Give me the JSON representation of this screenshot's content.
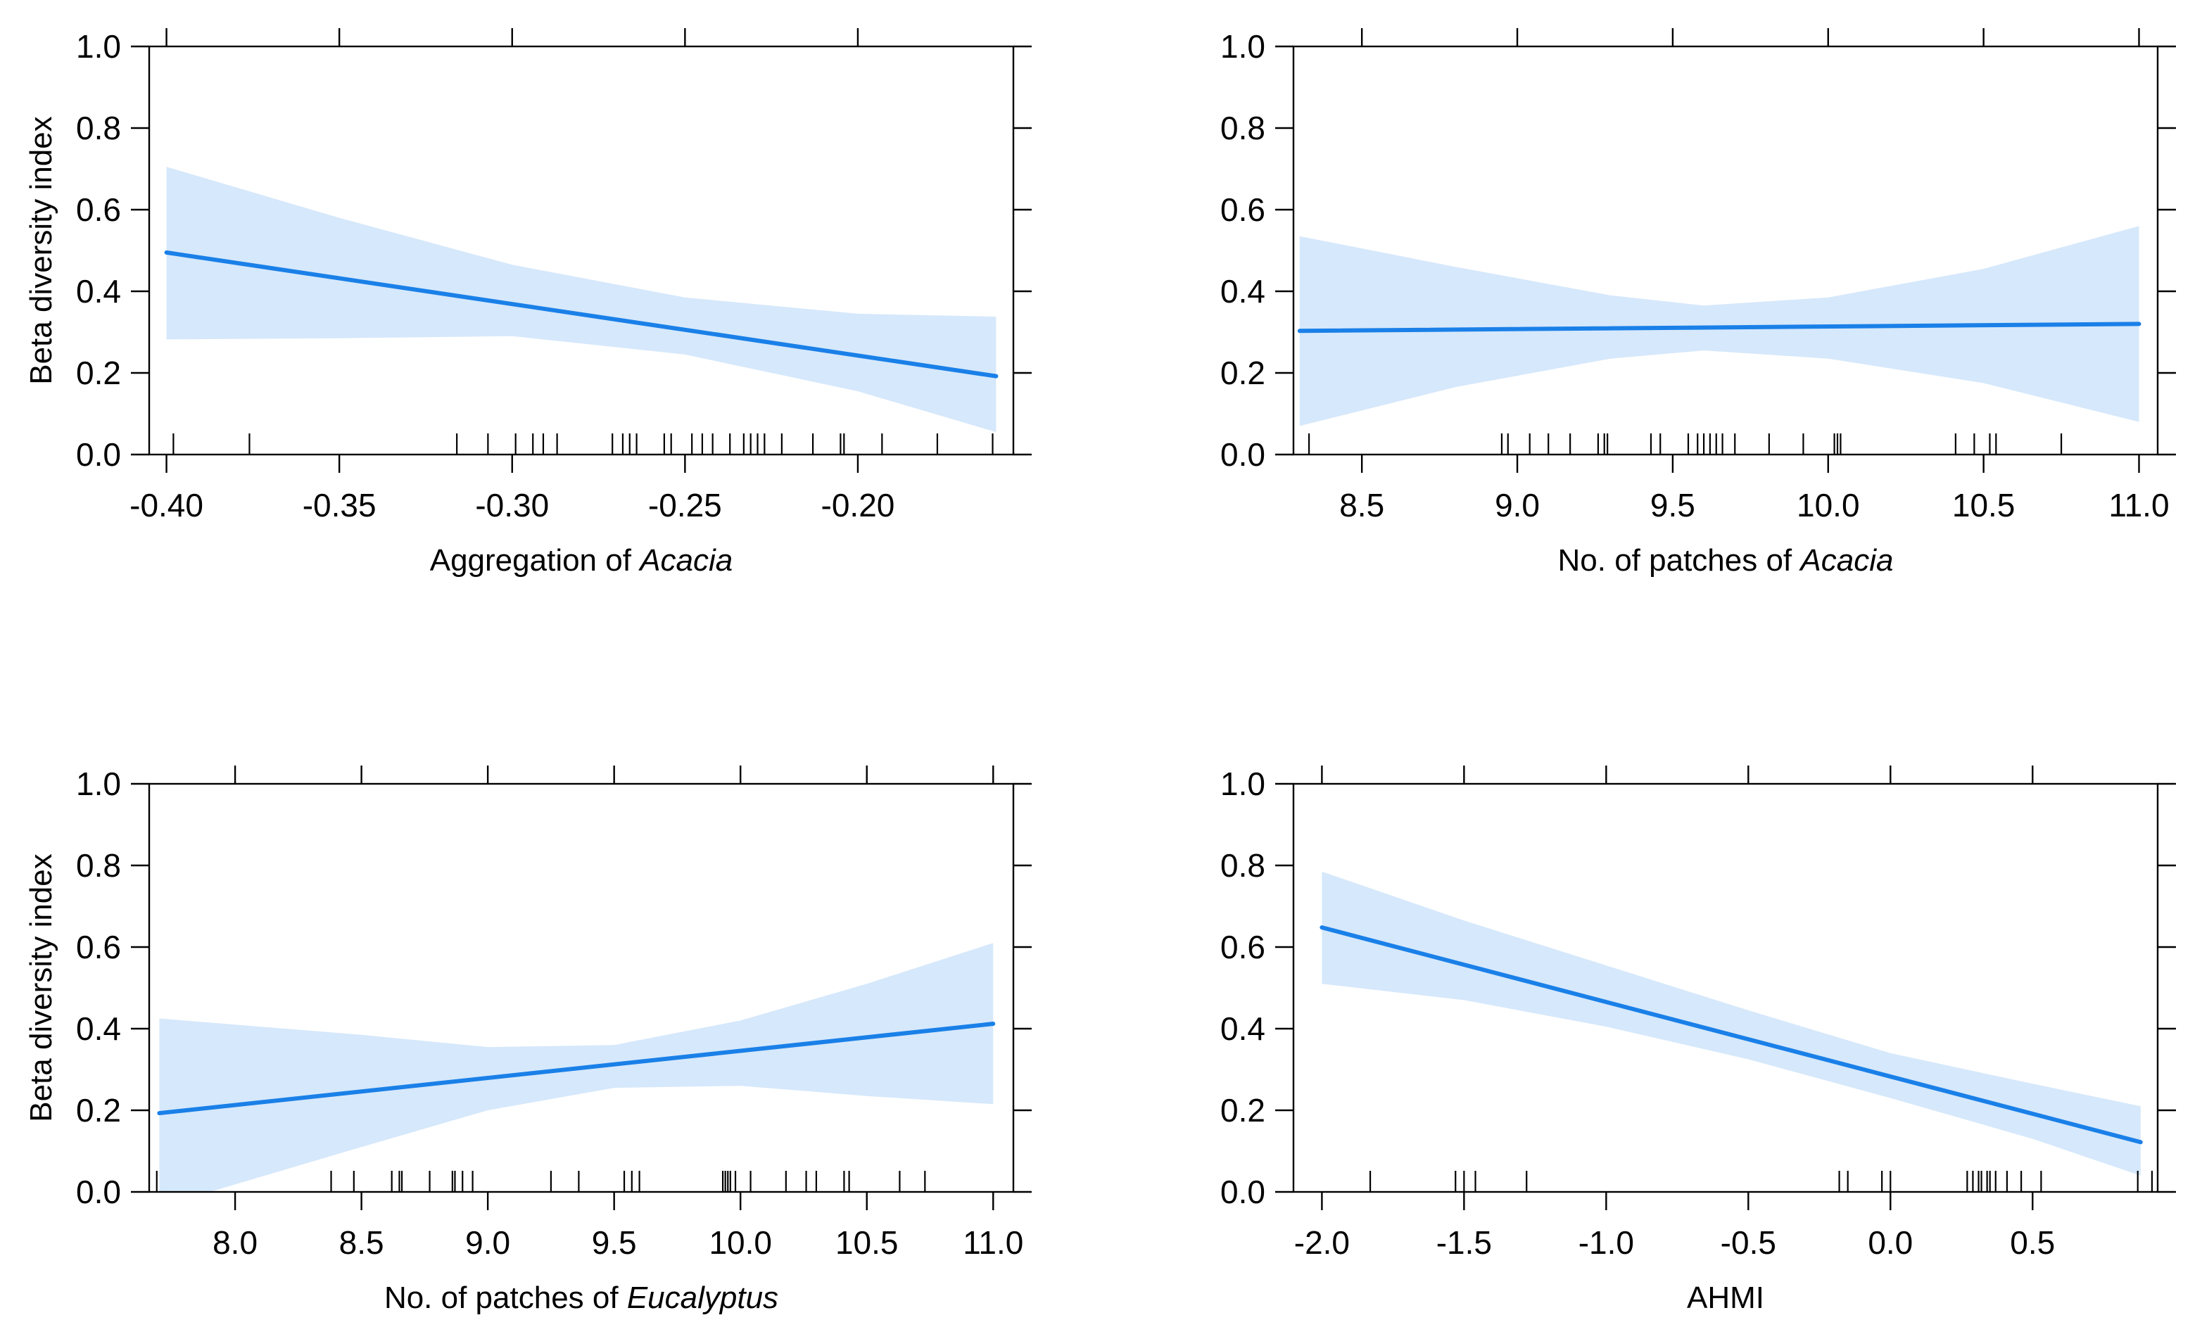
{
  "figure": {
    "line_color": "#1a80e8",
    "band_color": "#d6e8fb",
    "frame_color": "#000000"
  },
  "chart_data": [
    {
      "type": "line",
      "panel": "top-left",
      "xlabel": "Aggregation of ",
      "xlabel_italic": "Acacia",
      "ylabel": "Beta diversity index",
      "xlim": [
        -0.405,
        -0.155
      ],
      "ylim": [
        0.0,
        1.0
      ],
      "xticks": [
        -0.4,
        -0.35,
        -0.3,
        -0.25,
        -0.2
      ],
      "xtick_labels": [
        "-0.40",
        "-0.35",
        "-0.30",
        "-0.25",
        "-0.20"
      ],
      "top_ticks": [
        -0.4,
        -0.35,
        -0.3,
        -0.25,
        -0.2
      ],
      "yticks": [
        0.0,
        0.2,
        0.4,
        0.6,
        0.8,
        1.0
      ],
      "ytick_labels": [
        "0.0",
        "0.2",
        "0.4",
        "0.6",
        "0.8",
        "1.0"
      ],
      "fit": {
        "x": [
          -0.4,
          -0.16
        ],
        "y": [
          0.495,
          0.192
        ]
      },
      "ci_upper": {
        "x": [
          -0.4,
          -0.35,
          -0.3,
          -0.25,
          -0.2,
          -0.16
        ],
        "y": [
          0.705,
          0.58,
          0.465,
          0.385,
          0.345,
          0.338
        ]
      },
      "ci_lower": {
        "x": [
          -0.4,
          -0.35,
          -0.3,
          -0.25,
          -0.2,
          -0.16
        ],
        "y": [
          0.282,
          0.285,
          0.29,
          0.245,
          0.155,
          0.055
        ]
      },
      "rug": [
        -0.398,
        -0.376,
        -0.316,
        -0.307,
        -0.299,
        -0.294,
        -0.291,
        -0.287,
        -0.271,
        -0.268,
        -0.266,
        -0.264,
        -0.256,
        -0.254,
        -0.248,
        -0.245,
        -0.242,
        -0.237,
        -0.233,
        -0.231,
        -0.229,
        -0.227,
        -0.222,
        -0.213,
        -0.205,
        -0.204,
        -0.193,
        -0.177,
        -0.161
      ]
    },
    {
      "type": "line",
      "panel": "top-right",
      "xlabel": "No. of patches of ",
      "xlabel_italic": "Acacia",
      "ylabel": "",
      "xlim": [
        8.28,
        11.06
      ],
      "ylim": [
        0.0,
        1.0
      ],
      "xticks": [
        8.5,
        9.0,
        9.5,
        10.0,
        10.5,
        11.0
      ],
      "xtick_labels": [
        "8.5",
        "9.0",
        "9.5",
        "10.0",
        "10.5",
        "11.0"
      ],
      "top_ticks": [
        8.5,
        9.0,
        9.5,
        10.0,
        10.5,
        11.0
      ],
      "yticks": [
        0.0,
        0.2,
        0.4,
        0.6,
        0.8,
        1.0
      ],
      "ytick_labels": [
        "0.0",
        "0.2",
        "0.4",
        "0.6",
        "0.8",
        "1.0"
      ],
      "fit": {
        "x": [
          8.3,
          11.0
        ],
        "y": [
          0.303,
          0.32
        ]
      },
      "ci_upper": {
        "x": [
          8.3,
          8.8,
          9.3,
          9.6,
          10.0,
          10.5,
          11.0
        ],
        "y": [
          0.535,
          0.46,
          0.39,
          0.365,
          0.385,
          0.455,
          0.56
        ]
      },
      "ci_lower": {
        "x": [
          8.3,
          8.8,
          9.3,
          9.6,
          10.0,
          10.5,
          11.0
        ],
        "y": [
          0.07,
          0.165,
          0.235,
          0.255,
          0.235,
          0.175,
          0.08
        ]
      },
      "rug": [
        8.33,
        8.95,
        8.97,
        9.04,
        9.1,
        9.17,
        9.26,
        9.28,
        9.29,
        9.43,
        9.46,
        9.55,
        9.58,
        9.6,
        9.62,
        9.64,
        9.66,
        9.7,
        9.81,
        9.92,
        10.02,
        10.03,
        10.04,
        10.41,
        10.47,
        10.52,
        10.54,
        10.75
      ]
    },
    {
      "type": "line",
      "panel": "bottom-left",
      "xlabel": "No. of patches of ",
      "xlabel_italic": "Eucalyptus",
      "ylabel": "Beta diversity index",
      "xlim": [
        7.66,
        11.08
      ],
      "ylim": [
        0.0,
        1.0
      ],
      "xticks": [
        8.0,
        8.5,
        9.0,
        9.5,
        10.0,
        10.5,
        11.0
      ],
      "xtick_labels": [
        "8.0",
        "8.5",
        "9.0",
        "9.5",
        "10.0",
        "10.5",
        "11.0"
      ],
      "top_ticks": [
        8.0,
        8.5,
        9.0,
        9.5,
        10.0,
        10.5,
        11.0
      ],
      "yticks": [
        0.0,
        0.2,
        0.4,
        0.6,
        0.8,
        1.0
      ],
      "ytick_labels": [
        "0.0",
        "0.2",
        "0.4",
        "0.6",
        "0.8",
        "1.0"
      ],
      "fit": {
        "x": [
          7.7,
          11.0
        ],
        "y": [
          0.193,
          0.412
        ]
      },
      "ci_upper": {
        "x": [
          7.7,
          8.5,
          9.0,
          9.5,
          10.0,
          10.5,
          11.0
        ],
        "y": [
          0.425,
          0.385,
          0.355,
          0.36,
          0.42,
          0.51,
          0.61
        ]
      },
      "ci_lower": {
        "x": [
          7.7,
          7.9,
          8.5,
          9.0,
          9.5,
          10.0,
          10.5,
          11.0
        ],
        "y": [
          -0.05,
          0.0,
          0.11,
          0.2,
          0.255,
          0.26,
          0.235,
          0.215
        ]
      },
      "rug": [
        7.69,
        8.38,
        8.47,
        8.62,
        8.65,
        8.66,
        8.77,
        8.86,
        8.87,
        8.9,
        8.94,
        9.25,
        9.36,
        9.54,
        9.57,
        9.6,
        9.93,
        9.94,
        9.95,
        9.96,
        9.98,
        10.04,
        10.18,
        10.26,
        10.3,
        10.41,
        10.43,
        10.63,
        10.73
      ]
    },
    {
      "type": "line",
      "panel": "bottom-right",
      "xlabel": "AHMI",
      "xlabel_italic": "",
      "ylabel": "",
      "xlim": [
        -2.1,
        0.94
      ],
      "ylim": [
        0.0,
        1.0
      ],
      "xticks": [
        -2.0,
        -1.5,
        -1.0,
        -0.5,
        0.0,
        0.5
      ],
      "xtick_labels": [
        "-2.0",
        "-1.5",
        "-1.0",
        "-0.5",
        "0.0",
        "0.5"
      ],
      "top_ticks": [
        -2.0,
        -1.5,
        -1.0,
        -0.5,
        0.0,
        0.5
      ],
      "yticks": [
        0.0,
        0.2,
        0.4,
        0.6,
        0.8,
        1.0
      ],
      "ytick_labels": [
        "0.0",
        "0.2",
        "0.4",
        "0.6",
        "0.8",
        "1.0"
      ],
      "fit": {
        "x": [
          -2.0,
          0.88
        ],
        "y": [
          0.648,
          0.122
        ]
      },
      "ci_upper": {
        "x": [
          -2.0,
          -1.5,
          -1.0,
          -0.5,
          0.0,
          0.5,
          0.88
        ],
        "y": [
          0.785,
          0.665,
          0.555,
          0.445,
          0.34,
          0.265,
          0.21
        ]
      },
      "ci_lower": {
        "x": [
          -2.0,
          -1.5,
          -1.0,
          -0.5,
          0.0,
          0.5,
          0.88
        ],
        "y": [
          0.51,
          0.47,
          0.405,
          0.325,
          0.23,
          0.13,
          0.04
        ]
      },
      "rug": [
        -1.83,
        -1.53,
        -1.5,
        -1.46,
        -1.28,
        -0.18,
        -0.15,
        -0.03,
        0.0,
        0.27,
        0.29,
        0.31,
        0.32,
        0.34,
        0.35,
        0.37,
        0.41,
        0.46,
        0.53,
        0.87,
        0.92
      ]
    }
  ]
}
